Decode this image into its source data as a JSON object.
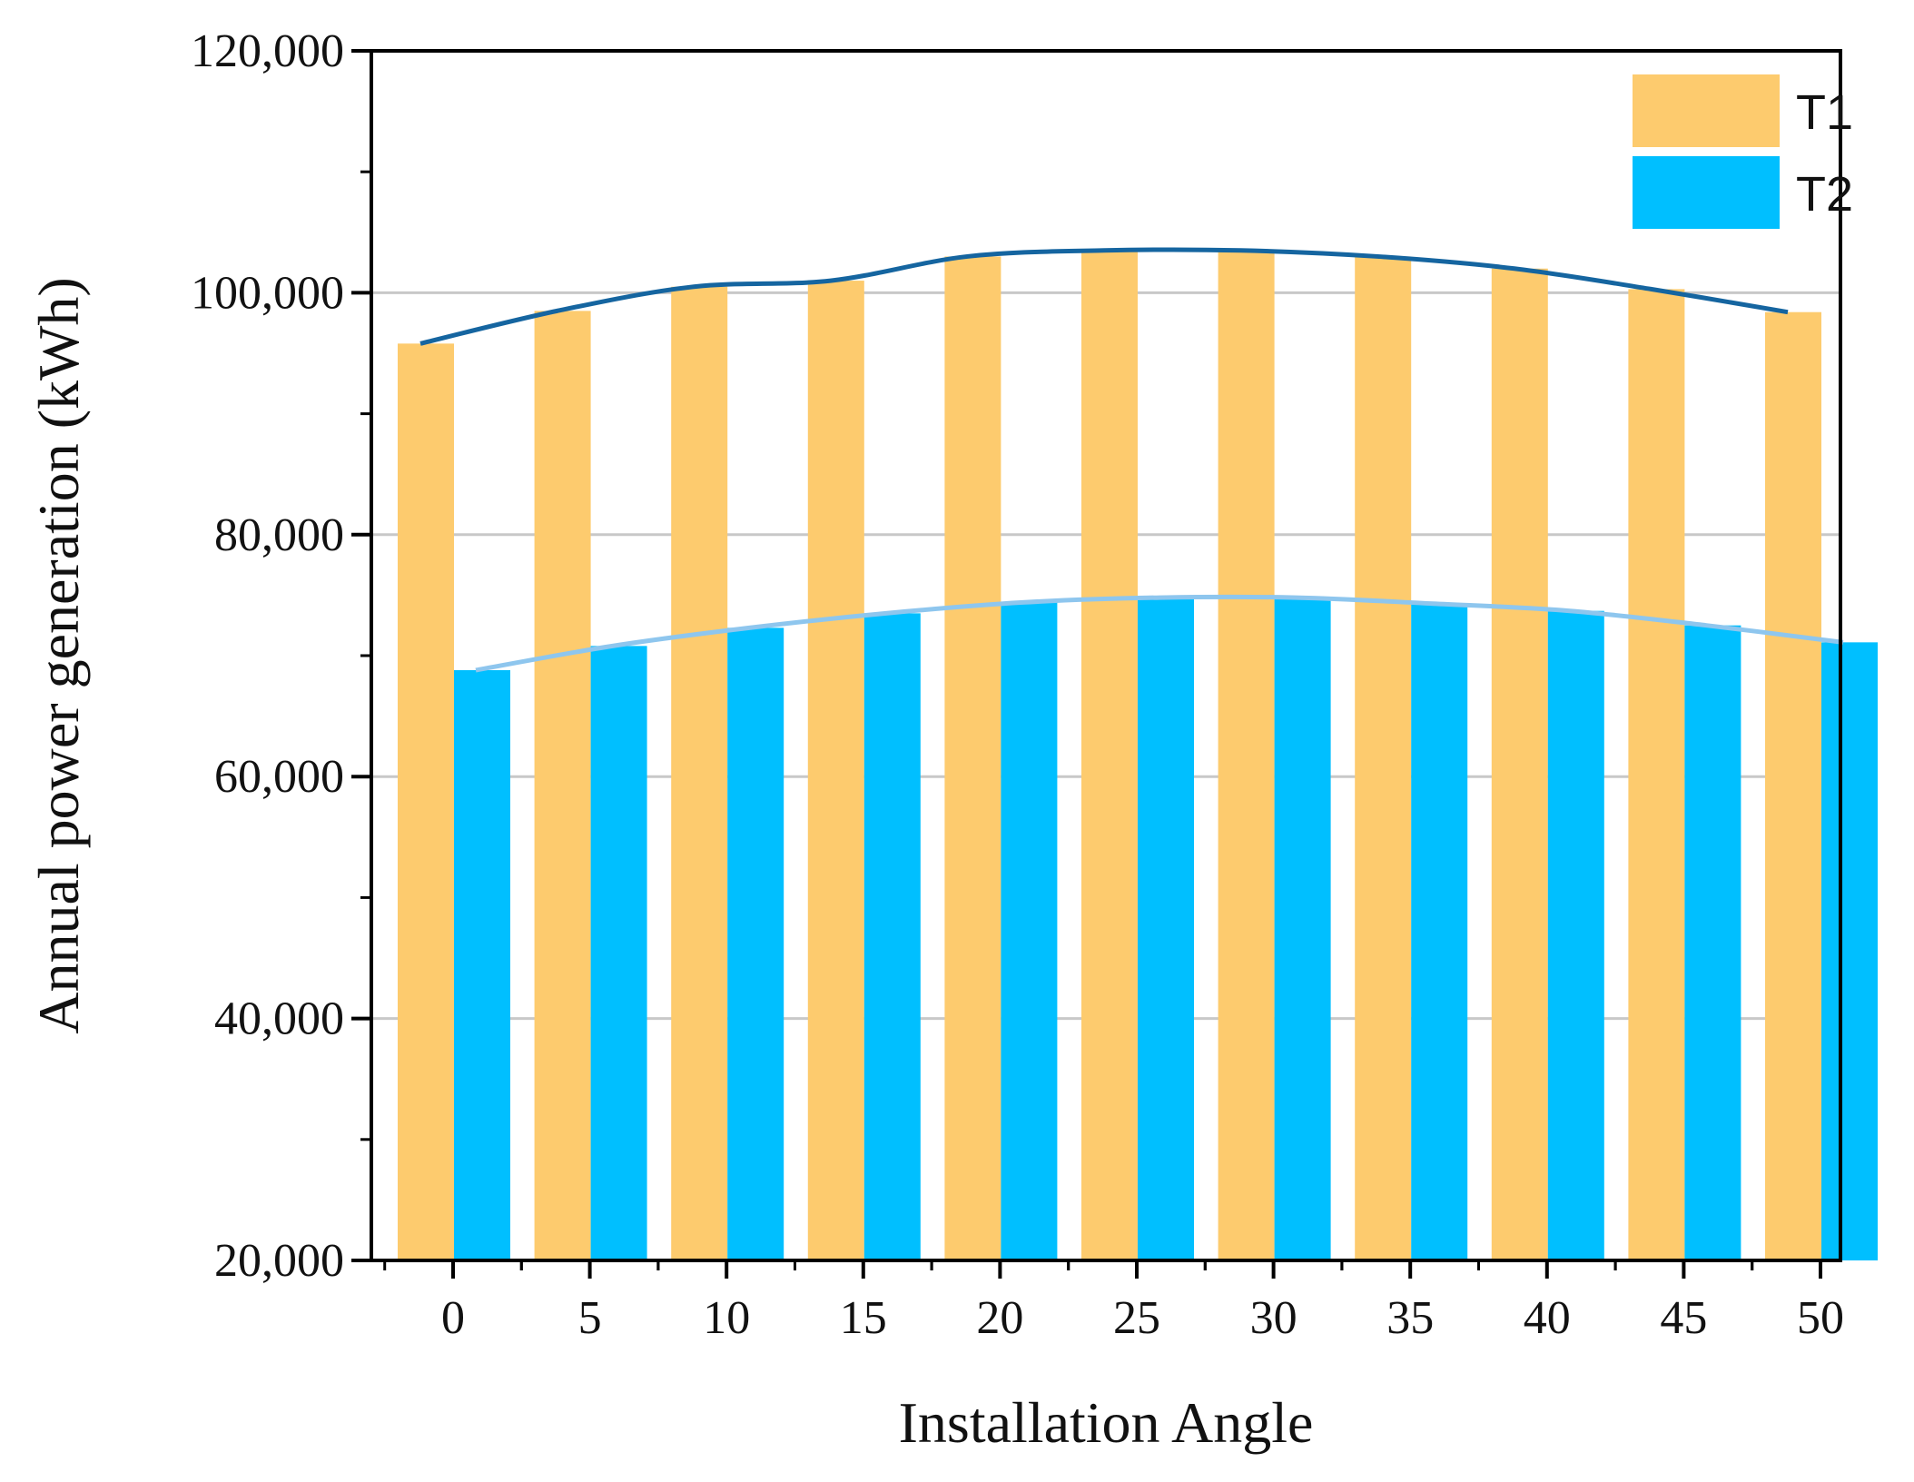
{
  "chart_data": {
    "type": "bar",
    "title": "",
    "xlabel": "Installation Angle",
    "ylabel": "Annual power generation (kWh)",
    "categories": [
      "0",
      "5",
      "10",
      "15",
      "20",
      "25",
      "30",
      "35",
      "40",
      "45",
      "50"
    ],
    "ylim": [
      20000,
      120000
    ],
    "yticks": [
      20000,
      40000,
      60000,
      80000,
      100000,
      120000
    ],
    "ytick_labels": [
      "20,000",
      "40,000",
      "60,000",
      "80,000",
      "100,000",
      "120,000"
    ],
    "grid": true,
    "legend_position": "top-right",
    "series": [
      {
        "name": "T1",
        "color": "#FDCB6E",
        "line_color": "#1565A0",
        "values": [
          95800,
          98500,
          100500,
          101000,
          103000,
          103500,
          103500,
          103000,
          102000,
          100300,
          98400
        ]
      },
      {
        "name": "T2",
        "color": "#00BFFF",
        "line_color": "#8EC6EE",
        "values": [
          68800,
          70800,
          72300,
          73500,
          74400,
          74800,
          74800,
          74300,
          73700,
          72500,
          71100
        ]
      }
    ]
  }
}
